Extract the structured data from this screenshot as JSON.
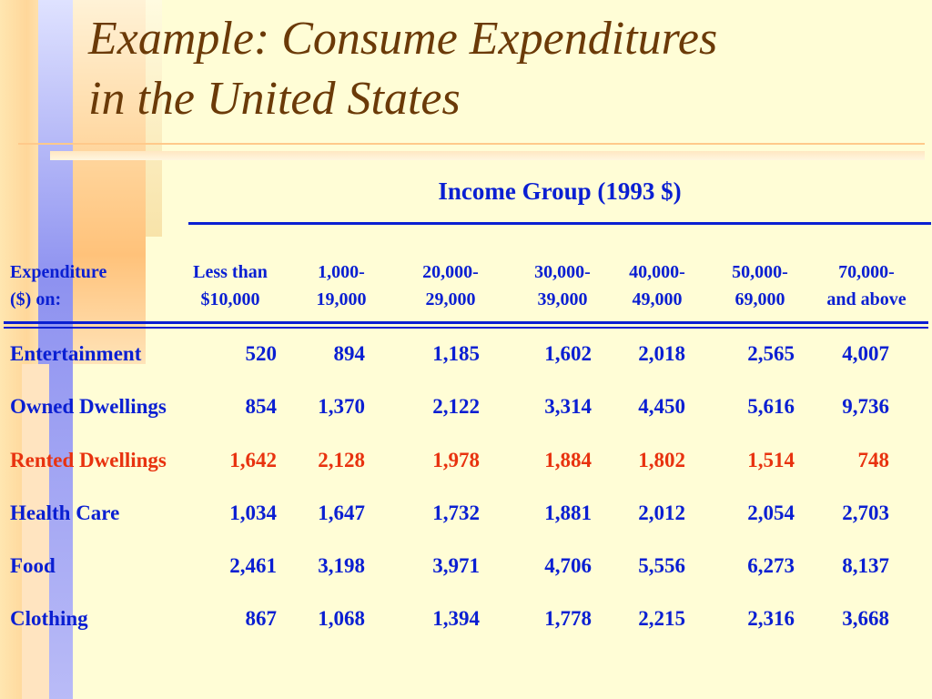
{
  "title": {
    "line1": "Example: Consume Expenditures",
    "line2": "in the United States"
  },
  "table": {
    "group_heading": "Income Group (1993 $)",
    "row_header": [
      "Expenditure",
      "($) on:"
    ],
    "columns": [
      [
        "Less than",
        "$10,000"
      ],
      [
        "1,000-",
        "19,000"
      ],
      [
        "20,000-",
        "29,000"
      ],
      [
        "30,000-",
        "39,000"
      ],
      [
        "40,000-",
        "49,000"
      ],
      [
        "50,000-",
        "69,000"
      ],
      [
        "70,000-",
        "and above"
      ]
    ],
    "rows": [
      {
        "label": "Entertainment",
        "values": [
          "520",
          "894",
          "1,185",
          "1,602",
          "2,018",
          "2,565",
          "4,007"
        ]
      },
      {
        "label": "Owned Dwellings",
        "values": [
          "854",
          "1,370",
          "2,122",
          "3,314",
          "4,450",
          "5,616",
          "9,736"
        ]
      },
      {
        "label": "Rented Dwellings",
        "highlight": true,
        "values": [
          "1,642",
          "2,128",
          "1,978",
          "1,884",
          "1,802",
          "1,514",
          "748"
        ]
      },
      {
        "label": "Health Care",
        "values": [
          "1,034",
          "1,647",
          "1,732",
          "1,881",
          "2,012",
          "2,054",
          "2,703"
        ]
      },
      {
        "label": "Food",
        "values": [
          "2,461",
          "3,198",
          "3,971",
          "4,706",
          "5,556",
          "6,273",
          "8,137"
        ]
      },
      {
        "label": "Clothing",
        "values": [
          "867",
          "1,068",
          "1,394",
          "1,778",
          "2,215",
          "2,316",
          "3,668"
        ]
      }
    ]
  },
  "colors": {
    "text_blue": "#0a1fd2",
    "highlight_red": "#e8320f",
    "title_brown": "#6b3a08",
    "background": "#fffdd6"
  }
}
